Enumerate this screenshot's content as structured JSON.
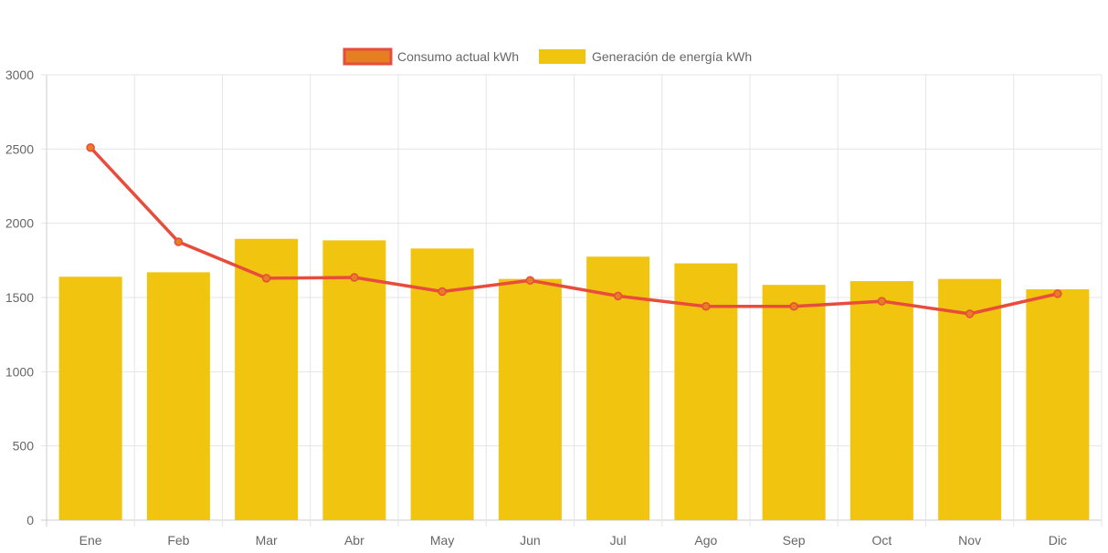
{
  "chart_data": {
    "type": "bar",
    "categories": [
      "Ene",
      "Feb",
      "Mar",
      "Abr",
      "May",
      "Jun",
      "Jul",
      "Ago",
      "Sep",
      "Oct",
      "Nov",
      "Dic"
    ],
    "series": [
      {
        "name": "Consumo actual kWh",
        "type": "line",
        "values": [
          2510,
          1875,
          1630,
          1635,
          1540,
          1615,
          1510,
          1440,
          1440,
          1475,
          1390,
          1525
        ],
        "color": "#e74c3c",
        "legend_fill": "#e67e22"
      },
      {
        "name": "Generación de energía kWh",
        "type": "bar",
        "values": [
          1640,
          1670,
          1895,
          1885,
          1830,
          1625,
          1775,
          1730,
          1585,
          1610,
          1625,
          1555
        ],
        "color": "#f1c40f"
      }
    ],
    "ylim": [
      0,
      3000
    ],
    "yticks": [
      0,
      500,
      1000,
      1500,
      2000,
      2500,
      3000
    ],
    "grid": true,
    "legend_position": "top-center",
    "title": "",
    "xlabel": "",
    "ylabel": ""
  }
}
